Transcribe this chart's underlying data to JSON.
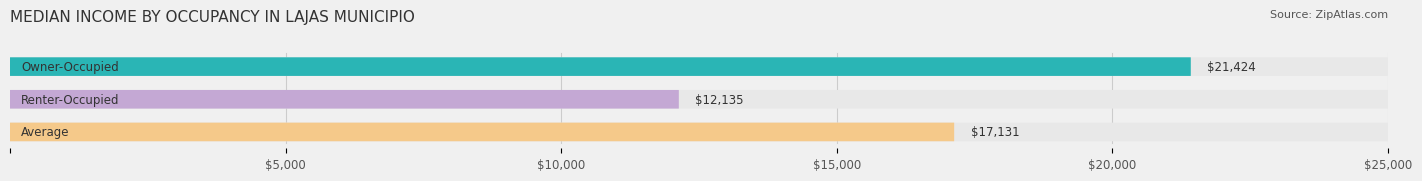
{
  "title": "MEDIAN INCOME BY OCCUPANCY IN LAJAS MUNICIPIO",
  "source": "Source: ZipAtlas.com",
  "categories": [
    "Owner-Occupied",
    "Renter-Occupied",
    "Average"
  ],
  "values": [
    21424,
    12135,
    17131
  ],
  "bar_colors": [
    "#2ab5b5",
    "#c4a8d4",
    "#f5c98a"
  ],
  "bar_edge_colors": [
    "#2ab5b5",
    "#c4a8d4",
    "#f5c98a"
  ],
  "labels": [
    "$21,424",
    "$12,135",
    "$17,131"
  ],
  "xlim": [
    0,
    25000
  ],
  "xticks": [
    0,
    5000,
    10000,
    15000,
    20000,
    25000
  ],
  "xtick_labels": [
    "",
    "$5,000",
    "$10,000",
    "$15,000",
    "$20,000",
    "$25,000"
  ],
  "title_fontsize": 11,
  "label_fontsize": 8.5,
  "tick_fontsize": 8.5,
  "source_fontsize": 8,
  "background_color": "#f0f0f0",
  "bar_bg_color": "#e8e8e8",
  "title_color": "#333333",
  "source_color": "#555555",
  "category_fontsize": 8.5
}
